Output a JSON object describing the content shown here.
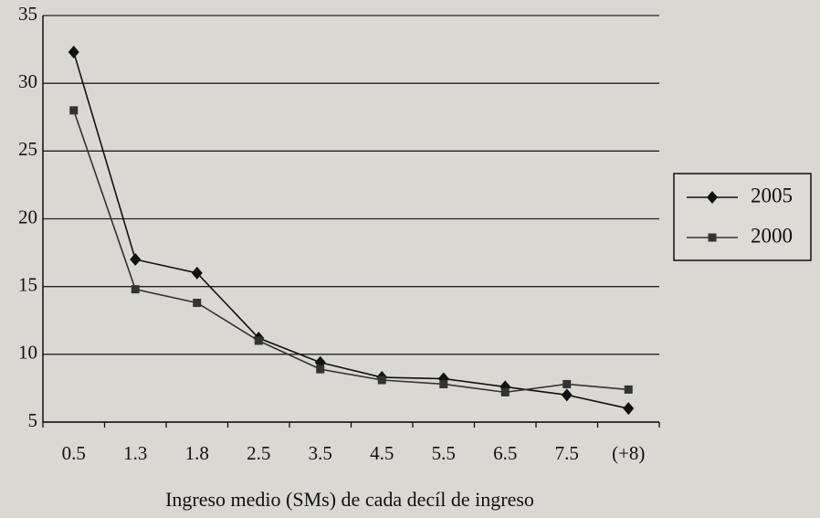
{
  "chart_data": {
    "type": "line",
    "x_label": "Ingreso medio (SMs) de cada decíl de ingreso",
    "categories": [
      "0.5",
      "1.3",
      "1.8",
      "2.5",
      "3.5",
      "4.5",
      "5.5",
      "6.5",
      "7.5",
      "(+8)"
    ],
    "series": [
      {
        "name": "2005",
        "color": "#111111",
        "marker": "diamond",
        "values": [
          32.3,
          17.0,
          16.0,
          11.2,
          9.4,
          8.3,
          8.2,
          7.6,
          7.0,
          6.0
        ]
      },
      {
        "name": "2000",
        "color": "#333333",
        "marker": "square",
        "values": [
          28.0,
          14.8,
          13.8,
          11.0,
          8.9,
          8.1,
          7.8,
          7.2,
          7.8,
          7.4
        ]
      }
    ],
    "ylim": [
      5,
      35
    ],
    "yticks": [
      5,
      10,
      15,
      20,
      25,
      30,
      35
    ],
    "grid": true,
    "legend": "right"
  }
}
